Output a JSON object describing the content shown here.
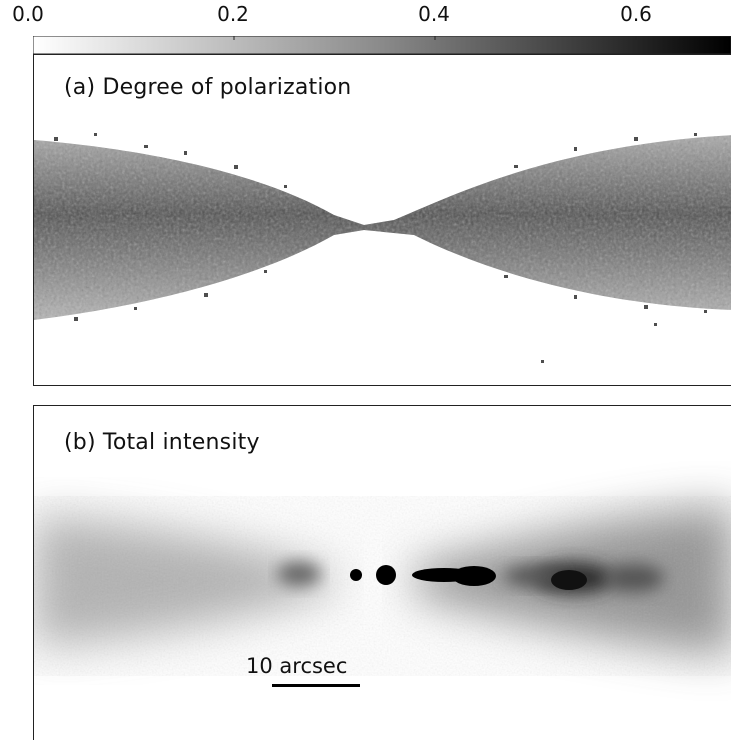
{
  "colorbar": {
    "tick_labels": [
      "0.0",
      "0.2",
      "0.4",
      "0.6"
    ],
    "range": [
      0.0,
      0.7
    ],
    "colormap": [
      "#ffffff",
      "#000000"
    ]
  },
  "panels": [
    {
      "title": "(a) Degree of polarization"
    },
    {
      "title": "(b) Total intensity",
      "scale_bar_label": "10 arcsec"
    }
  ]
}
